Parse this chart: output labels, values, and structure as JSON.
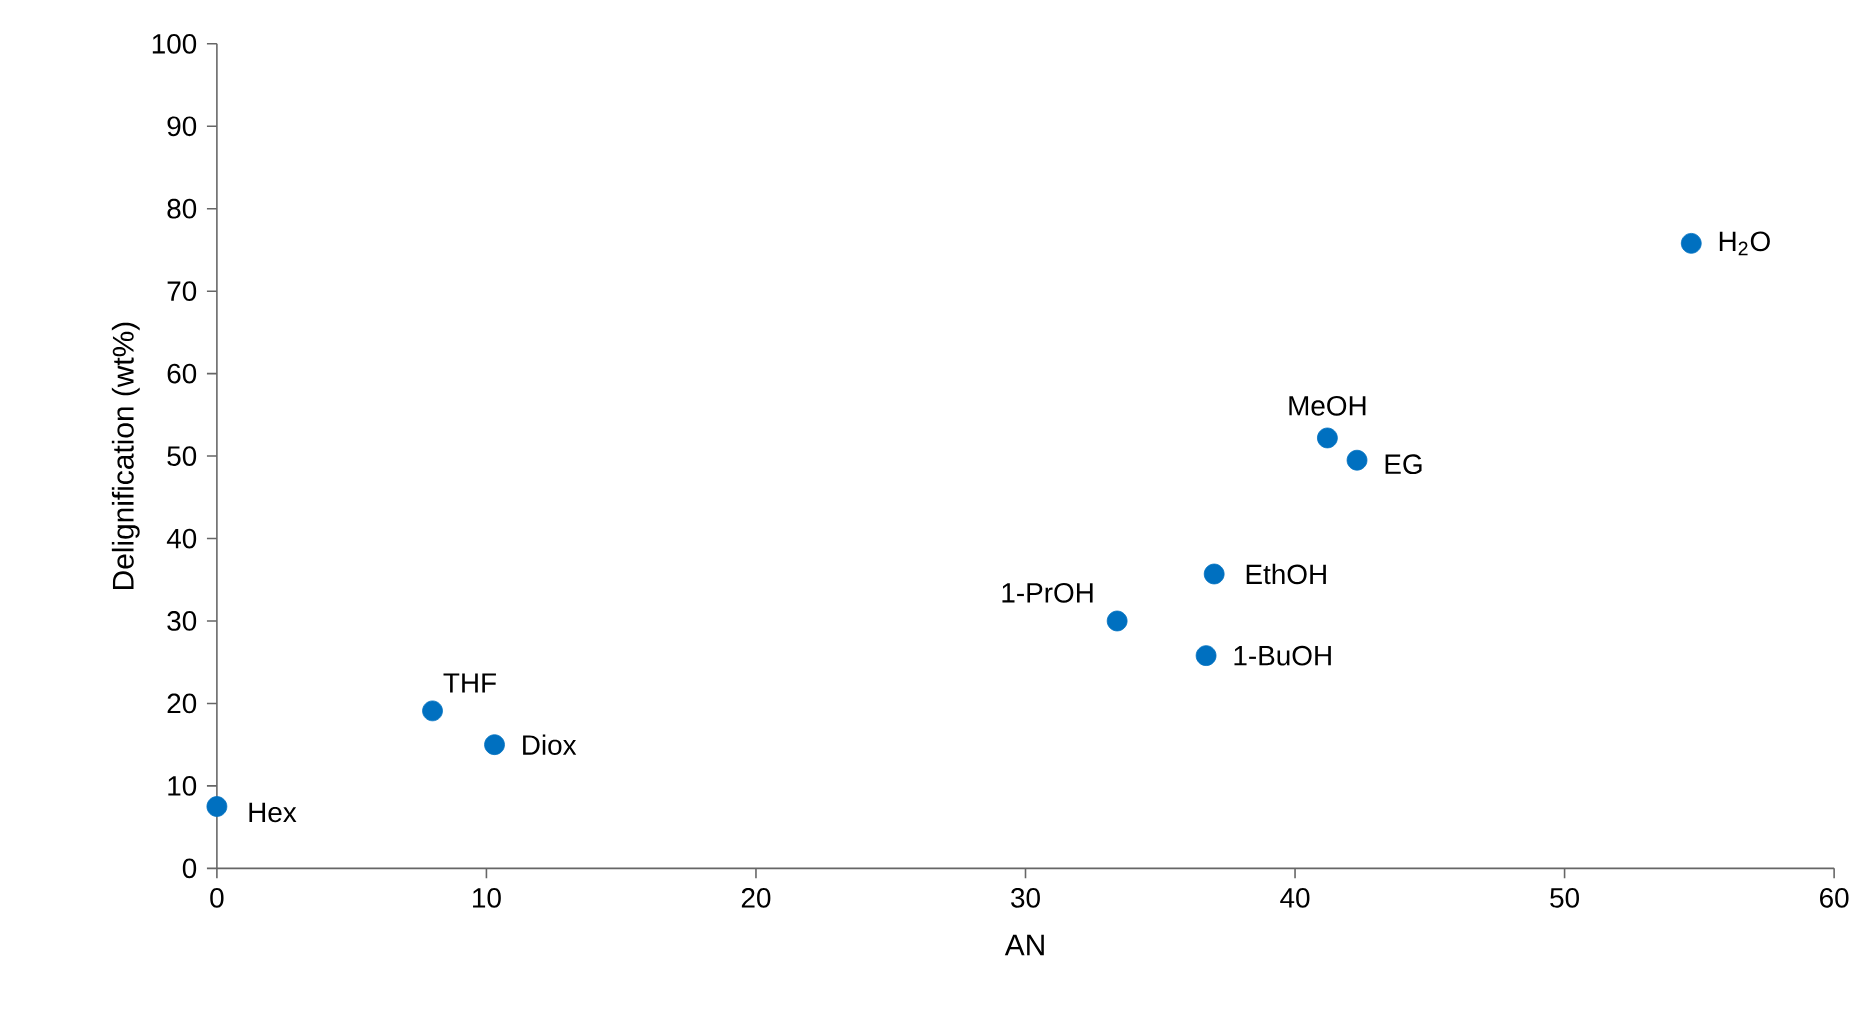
{
  "chart_data": {
    "type": "scatter",
    "xlabel": "AN",
    "ylabel": "Delignification (wt%)",
    "x": [
      0,
      8.0,
      10.3,
      33.4,
      36.7,
      37.0,
      41.2,
      42.3,
      54.7
    ],
    "values": [
      7.5,
      19.1,
      15.0,
      30.0,
      25.8,
      35.7,
      52.2,
      49.5,
      75.8
    ],
    "color": "#0070c0",
    "marker": "circle",
    "xlim": [
      0,
      60
    ],
    "xticks": [
      0,
      10,
      20,
      30,
      40,
      50,
      60
    ],
    "ylim": [
      0,
      100
    ],
    "yticks": [
      0,
      10,
      20,
      30,
      40,
      50,
      60,
      70,
      80,
      90,
      100
    ],
    "grid": false,
    "annotations": [
      {
        "text": "Hex",
        "x": 0,
        "y": 7.5
      },
      {
        "text": "THF",
        "x": 8.0,
        "y": 19.1
      },
      {
        "text": "Diox",
        "x": 10.3,
        "y": 15.0
      },
      {
        "text": "1-PrOH",
        "x": 33.4,
        "y": 30.0
      },
      {
        "text": "1-BuOH",
        "x": 36.7,
        "y": 25.8
      },
      {
        "text": "EthOH",
        "x": 37.0,
        "y": 35.7
      },
      {
        "text": "MeOH",
        "x": 41.2,
        "y": 52.2
      },
      {
        "text": "EG",
        "x": 42.3,
        "y": 49.5
      },
      {
        "text": "H$_{2}$O",
        "x": 54.7,
        "y": 75.8
      }
    ]
  }
}
